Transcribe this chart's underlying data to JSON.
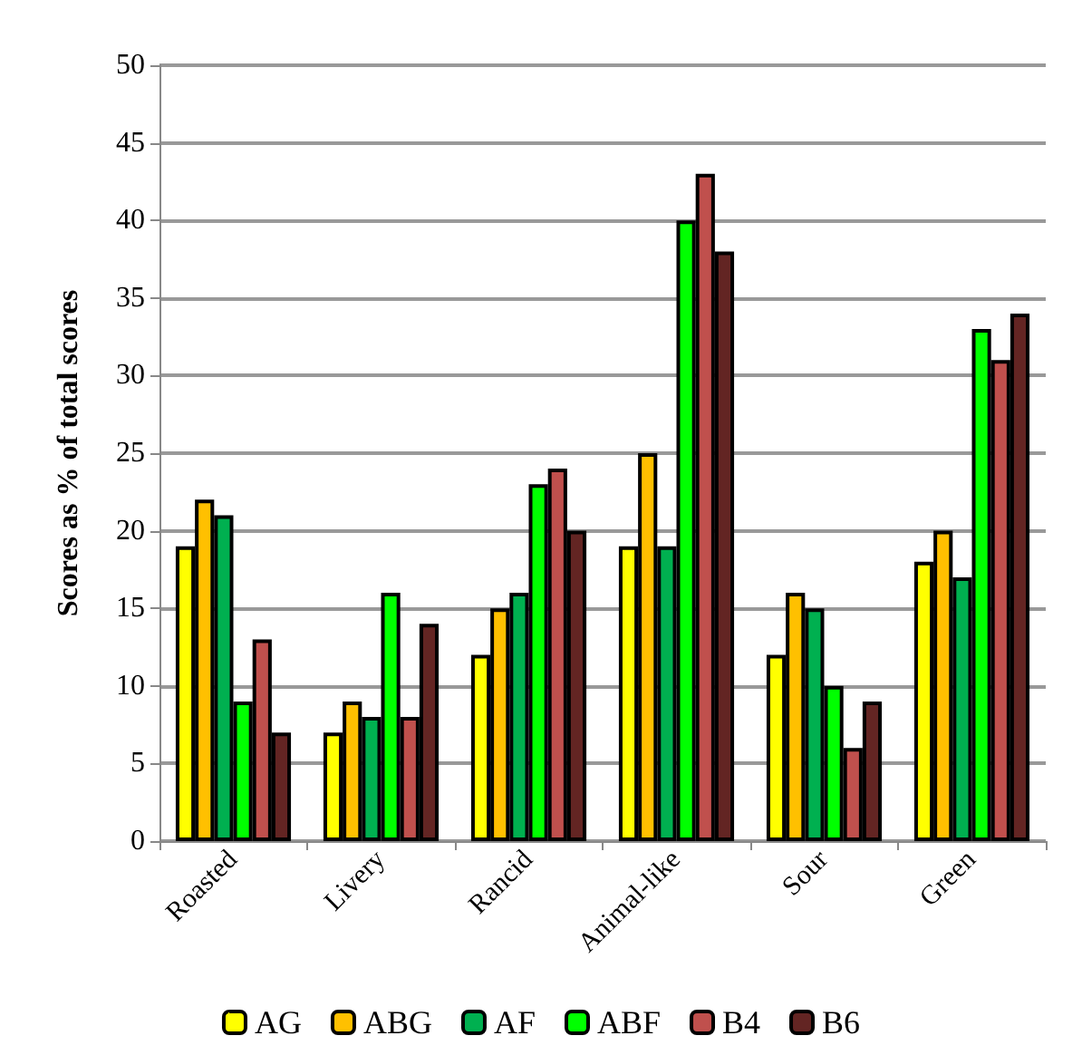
{
  "chart_data": {
    "type": "bar",
    "ylabel": "Scores as % of total scores",
    "categories": [
      "Roasted",
      "Livery",
      "Rancid",
      "Animal-like",
      "Sour",
      "Green"
    ],
    "series": [
      {
        "name": "AG",
        "color": "#ffff00",
        "values": [
          19,
          7,
          12,
          19,
          12,
          18
        ]
      },
      {
        "name": "ABG",
        "color": "#ffc000",
        "values": [
          22,
          9,
          15,
          25,
          16,
          20
        ]
      },
      {
        "name": "AF",
        "color": "#00b050",
        "values": [
          21,
          8,
          16,
          19,
          15,
          17
        ]
      },
      {
        "name": "ABF",
        "color": "#00ff00",
        "values": [
          9,
          16,
          23,
          40,
          10,
          33
        ]
      },
      {
        "name": "B4",
        "color": "#c0504d",
        "values": [
          13,
          8,
          24,
          43,
          6,
          31
        ]
      },
      {
        "name": "B6",
        "color": "#632523",
        "values": [
          7,
          14,
          20,
          38,
          9,
          34
        ]
      }
    ],
    "ylim": [
      0,
      50
    ],
    "yticks": [
      0,
      5,
      10,
      15,
      20,
      25,
      30,
      35,
      40,
      45,
      50
    ],
    "grid": "y",
    "legend": "bottom"
  }
}
